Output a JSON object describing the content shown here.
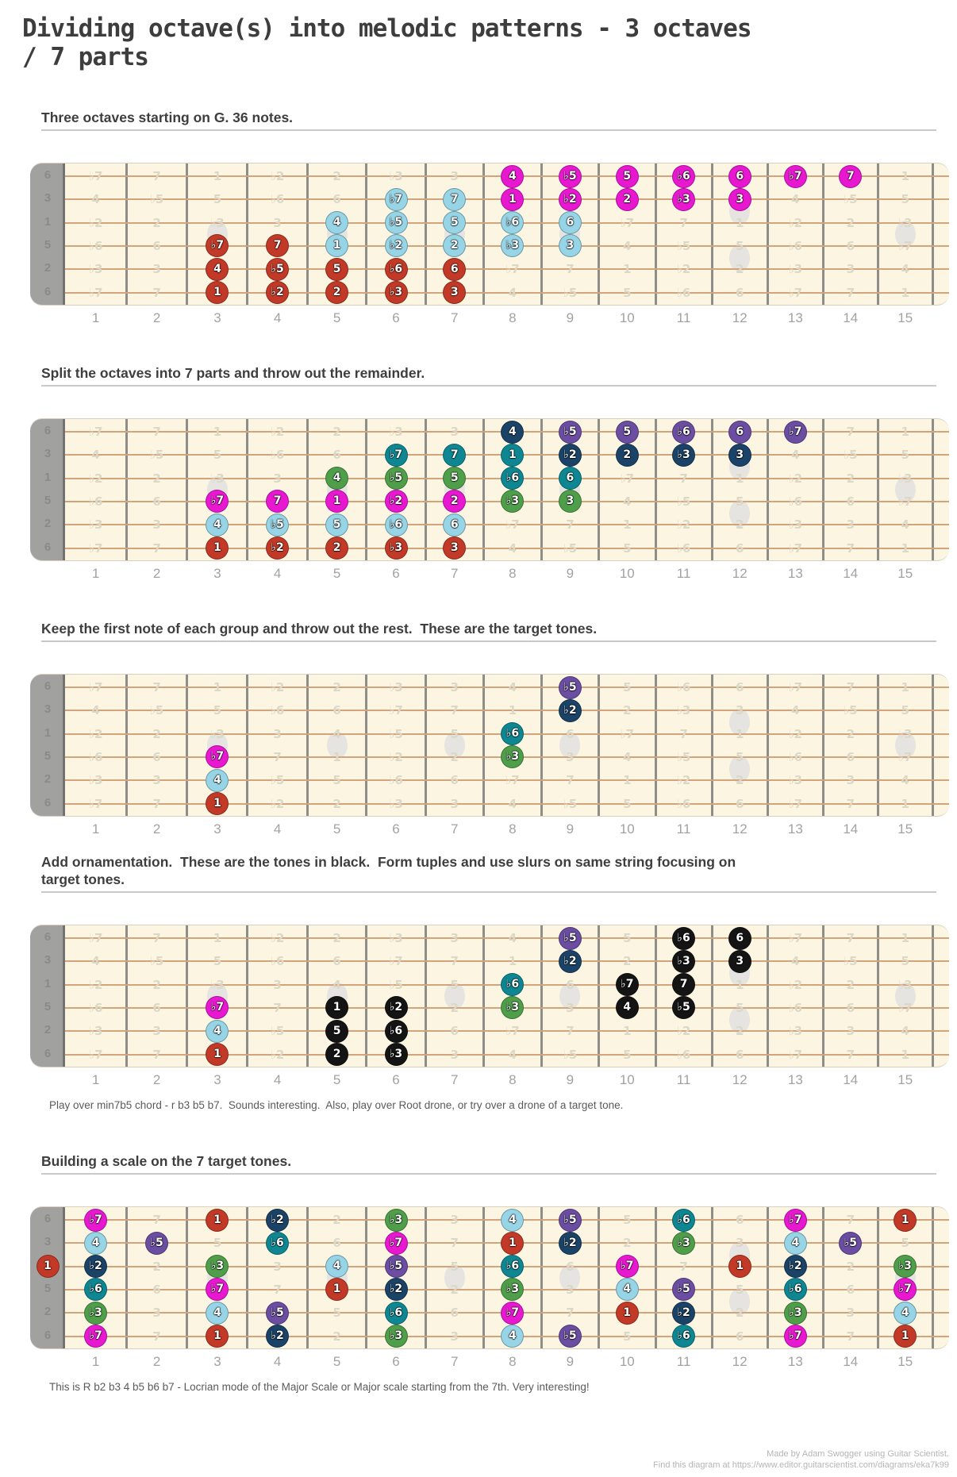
{
  "title": {
    "line1": "Dividing octave(s) into melodic patterns - 3 octaves",
    "line2": "/ 7 parts"
  },
  "colors": {
    "red": "#c23a27",
    "blue": "#96d4e6",
    "magenta": "#e818d1",
    "green": "#4f9e4a",
    "teal": "#0e8793",
    "navy": "#1a4367",
    "purple": "#6b4da2",
    "black": "#141414"
  },
  "fretboard": {
    "string_labels": [
      "6",
      "3",
      "1",
      "5",
      "2",
      "6"
    ],
    "fret_numbers": [
      "1",
      "2",
      "3",
      "4",
      "5",
      "6",
      "7",
      "8",
      "9",
      "10",
      "11",
      "12",
      "13",
      "14",
      "15"
    ],
    "interval_grid": [
      [
        "♭7",
        "7",
        "1",
        "♭2",
        "2",
        "♭3",
        "3",
        "4",
        "♭5",
        "5",
        "♭6",
        "6",
        "♭7",
        "7",
        "1"
      ],
      [
        "4",
        "♭5",
        "5",
        "♭6",
        "6",
        "♭7",
        "7",
        "1",
        "♭2",
        "2",
        "♭3",
        "3",
        "4",
        "♭5",
        "5"
      ],
      [
        "♭2",
        "2",
        "♭3",
        "3",
        "4",
        "♭5",
        "5",
        "♭6",
        "6",
        "♭7",
        "7",
        "1",
        "♭2",
        "2",
        "♭3"
      ],
      [
        "♭6",
        "6",
        "♭7",
        "7",
        "1",
        "♭2",
        "2",
        "♭3",
        "3",
        "4",
        "♭5",
        "5",
        "♭6",
        "6",
        "♭7"
      ],
      [
        "♭3",
        "3",
        "4",
        "♭5",
        "5",
        "♭6",
        "6",
        "♭7",
        "7",
        "1",
        "♭2",
        "2",
        "♭3",
        "3",
        "4"
      ],
      [
        "♭7",
        "7",
        "1",
        "♭2",
        "2",
        "♭3",
        "3",
        "4",
        "♭5",
        "5",
        "♭6",
        "6",
        "♭7",
        "7",
        "1"
      ]
    ],
    "inlay_frets_single": [
      3,
      5,
      7,
      9,
      15
    ],
    "inlay_frets_double": [
      12
    ]
  },
  "diagrams": [
    {
      "caption": "Three octaves starting on G. 36 notes.",
      "note": "",
      "dots": [
        [
          5,
          3,
          "1",
          "red"
        ],
        [
          5,
          4,
          "♭2",
          "red"
        ],
        [
          5,
          5,
          "2",
          "red"
        ],
        [
          5,
          6,
          "♭3",
          "red"
        ],
        [
          5,
          7,
          "3",
          "red"
        ],
        [
          4,
          3,
          "4",
          "red"
        ],
        [
          4,
          4,
          "♭5",
          "red"
        ],
        [
          4,
          5,
          "5",
          "red"
        ],
        [
          4,
          6,
          "♭6",
          "red"
        ],
        [
          4,
          7,
          "6",
          "red"
        ],
        [
          3,
          3,
          "♭7",
          "red"
        ],
        [
          3,
          4,
          "7",
          "red"
        ],
        [
          3,
          5,
          "1",
          "blue"
        ],
        [
          3,
          6,
          "♭2",
          "blue"
        ],
        [
          3,
          7,
          "2",
          "blue"
        ],
        [
          3,
          8,
          "♭3",
          "blue"
        ],
        [
          3,
          9,
          "3",
          "blue"
        ],
        [
          2,
          5,
          "4",
          "blue"
        ],
        [
          2,
          6,
          "♭5",
          "blue"
        ],
        [
          2,
          7,
          "5",
          "blue"
        ],
        [
          2,
          8,
          "♭6",
          "blue"
        ],
        [
          2,
          9,
          "6",
          "blue"
        ],
        [
          1,
          6,
          "♭7",
          "blue"
        ],
        [
          1,
          7,
          "7",
          "blue"
        ],
        [
          1,
          8,
          "1",
          "magenta"
        ],
        [
          1,
          9,
          "♭2",
          "magenta"
        ],
        [
          1,
          10,
          "2",
          "magenta"
        ],
        [
          1,
          11,
          "♭3",
          "magenta"
        ],
        [
          1,
          12,
          "3",
          "magenta"
        ],
        [
          0,
          8,
          "4",
          "magenta"
        ],
        [
          0,
          9,
          "♭5",
          "magenta"
        ],
        [
          0,
          10,
          "5",
          "magenta"
        ],
        [
          0,
          11,
          "♭6",
          "magenta"
        ],
        [
          0,
          12,
          "6",
          "magenta"
        ],
        [
          0,
          13,
          "♭7",
          "magenta"
        ],
        [
          0,
          14,
          "7",
          "magenta"
        ]
      ]
    },
    {
      "caption": "Split the octaves into 7 parts and throw out the remainder.",
      "note": "",
      "dots": [
        [
          5,
          3,
          "1",
          "red"
        ],
        [
          5,
          4,
          "♭2",
          "red"
        ],
        [
          5,
          5,
          "2",
          "red"
        ],
        [
          5,
          6,
          "♭3",
          "red"
        ],
        [
          5,
          7,
          "3",
          "red"
        ],
        [
          4,
          3,
          "4",
          "blue"
        ],
        [
          4,
          4,
          "♭5",
          "blue"
        ],
        [
          4,
          5,
          "5",
          "blue"
        ],
        [
          4,
          6,
          "♭6",
          "blue"
        ],
        [
          4,
          7,
          "6",
          "blue"
        ],
        [
          3,
          3,
          "♭7",
          "magenta"
        ],
        [
          3,
          4,
          "7",
          "magenta"
        ],
        [
          3,
          5,
          "1",
          "magenta"
        ],
        [
          3,
          6,
          "♭2",
          "magenta"
        ],
        [
          3,
          7,
          "2",
          "magenta"
        ],
        [
          3,
          8,
          "♭3",
          "green"
        ],
        [
          3,
          9,
          "3",
          "green"
        ],
        [
          2,
          5,
          "4",
          "green"
        ],
        [
          2,
          6,
          "♭5",
          "green"
        ],
        [
          2,
          7,
          "5",
          "green"
        ],
        [
          2,
          8,
          "♭6",
          "teal"
        ],
        [
          2,
          9,
          "6",
          "teal"
        ],
        [
          1,
          6,
          "♭7",
          "teal"
        ],
        [
          1,
          7,
          "7",
          "teal"
        ],
        [
          1,
          8,
          "1",
          "teal"
        ],
        [
          1,
          9,
          "♭2",
          "navy"
        ],
        [
          1,
          10,
          "2",
          "navy"
        ],
        [
          1,
          11,
          "♭3",
          "navy"
        ],
        [
          1,
          12,
          "3",
          "navy"
        ],
        [
          0,
          8,
          "4",
          "navy"
        ],
        [
          0,
          9,
          "♭5",
          "purple"
        ],
        [
          0,
          10,
          "5",
          "purple"
        ],
        [
          0,
          11,
          "♭6",
          "purple"
        ],
        [
          0,
          12,
          "6",
          "purple"
        ],
        [
          0,
          13,
          "♭7",
          "purple"
        ]
      ]
    },
    {
      "caption": "Keep the first note of each group and throw out the rest.  These are the target tones.",
      "note": "",
      "dots": [
        [
          5,
          3,
          "1",
          "red"
        ],
        [
          4,
          3,
          "4",
          "blue"
        ],
        [
          3,
          3,
          "♭7",
          "magenta"
        ],
        [
          3,
          8,
          "♭3",
          "green"
        ],
        [
          2,
          8,
          "♭6",
          "teal"
        ],
        [
          1,
          9,
          "♭2",
          "navy"
        ],
        [
          0,
          9,
          "♭5",
          "purple"
        ]
      ]
    },
    {
      "caption": "Add ornamentation.  These are the tones in black.  Form tuples and use slurs on same string focusing on target tones.",
      "note": "Play over min7b5 chord - r b3 b5 b7.  Sounds interesting.  Also, play over Root drone, or try over a drone of a target tone.",
      "dots": [
        [
          5,
          3,
          "1",
          "red"
        ],
        [
          4,
          3,
          "4",
          "blue"
        ],
        [
          3,
          3,
          "♭7",
          "magenta"
        ],
        [
          3,
          8,
          "♭3",
          "green"
        ],
        [
          2,
          8,
          "♭6",
          "teal"
        ],
        [
          1,
          9,
          "♭2",
          "navy"
        ],
        [
          0,
          9,
          "♭5",
          "purple"
        ],
        [
          5,
          5,
          "2",
          "black"
        ],
        [
          5,
          6,
          "♭3",
          "black"
        ],
        [
          4,
          5,
          "5",
          "black"
        ],
        [
          4,
          6,
          "♭6",
          "black"
        ],
        [
          3,
          5,
          "1",
          "black"
        ],
        [
          3,
          6,
          "♭2",
          "black"
        ],
        [
          3,
          10,
          "4",
          "black"
        ],
        [
          3,
          11,
          "♭5",
          "black"
        ],
        [
          2,
          10,
          "♭7",
          "black"
        ],
        [
          2,
          11,
          "7",
          "black"
        ],
        [
          1,
          11,
          "♭3",
          "black"
        ],
        [
          1,
          12,
          "3",
          "black"
        ],
        [
          0,
          11,
          "♭6",
          "black"
        ],
        [
          0,
          12,
          "6",
          "black"
        ]
      ]
    },
    {
      "caption": "Building a scale on the 7 target tones.",
      "note": "This is R b2 b3 4 b5 b6 b7 - Locrian mode of the Major Scale or Major scale starting from the 7th. Very interesting!",
      "dots": [
        [
          0,
          1,
          "♭7",
          "magenta"
        ],
        [
          0,
          3,
          "1",
          "red"
        ],
        [
          0,
          4,
          "♭2",
          "navy"
        ],
        [
          0,
          6,
          "♭3",
          "green"
        ],
        [
          0,
          8,
          "4",
          "blue"
        ],
        [
          0,
          9,
          "♭5",
          "purple"
        ],
        [
          0,
          11,
          "♭6",
          "teal"
        ],
        [
          0,
          13,
          "♭7",
          "magenta"
        ],
        [
          0,
          15,
          "1",
          "red"
        ],
        [
          1,
          1,
          "4",
          "blue"
        ],
        [
          1,
          2,
          "♭5",
          "purple"
        ],
        [
          1,
          4,
          "♭6",
          "teal"
        ],
        [
          1,
          6,
          "♭7",
          "magenta"
        ],
        [
          1,
          8,
          "1",
          "red"
        ],
        [
          1,
          9,
          "♭2",
          "navy"
        ],
        [
          1,
          11,
          "♭3",
          "green"
        ],
        [
          1,
          13,
          "4",
          "blue"
        ],
        [
          1,
          14,
          "♭5",
          "purple"
        ],
        [
          2,
          0,
          "1",
          "red"
        ],
        [
          2,
          1,
          "♭2",
          "navy"
        ],
        [
          2,
          3,
          "♭3",
          "green"
        ],
        [
          2,
          5,
          "4",
          "blue"
        ],
        [
          2,
          6,
          "♭5",
          "purple"
        ],
        [
          2,
          8,
          "♭6",
          "teal"
        ],
        [
          2,
          10,
          "♭7",
          "magenta"
        ],
        [
          2,
          12,
          "1",
          "red"
        ],
        [
          2,
          13,
          "♭2",
          "navy"
        ],
        [
          2,
          15,
          "♭3",
          "green"
        ],
        [
          3,
          1,
          "♭6",
          "teal"
        ],
        [
          3,
          3,
          "♭7",
          "magenta"
        ],
        [
          3,
          5,
          "1",
          "red"
        ],
        [
          3,
          6,
          "♭2",
          "navy"
        ],
        [
          3,
          8,
          "♭3",
          "green"
        ],
        [
          3,
          10,
          "4",
          "blue"
        ],
        [
          3,
          11,
          "♭5",
          "purple"
        ],
        [
          3,
          13,
          "♭6",
          "teal"
        ],
        [
          3,
          15,
          "♭7",
          "magenta"
        ],
        [
          4,
          1,
          "♭3",
          "green"
        ],
        [
          4,
          3,
          "4",
          "blue"
        ],
        [
          4,
          4,
          "♭5",
          "purple"
        ],
        [
          4,
          6,
          "♭6",
          "teal"
        ],
        [
          4,
          8,
          "♭7",
          "magenta"
        ],
        [
          4,
          10,
          "1",
          "red"
        ],
        [
          4,
          11,
          "♭2",
          "navy"
        ],
        [
          4,
          13,
          "♭3",
          "green"
        ],
        [
          4,
          15,
          "4",
          "blue"
        ],
        [
          5,
          1,
          "♭7",
          "magenta"
        ],
        [
          5,
          3,
          "1",
          "red"
        ],
        [
          5,
          4,
          "♭2",
          "navy"
        ],
        [
          5,
          6,
          "♭3",
          "green"
        ],
        [
          5,
          8,
          "4",
          "blue"
        ],
        [
          5,
          9,
          "♭5",
          "purple"
        ],
        [
          5,
          11,
          "♭6",
          "teal"
        ],
        [
          5,
          13,
          "♭7",
          "magenta"
        ],
        [
          5,
          15,
          "1",
          "red"
        ]
      ]
    }
  ],
  "footer": {
    "line1": "Made by Adam Swogger using Guitar Scientist.",
    "line2": "Find this diagram at https://www.editor.guitarscientist.com/diagrams/eka7k99"
  }
}
